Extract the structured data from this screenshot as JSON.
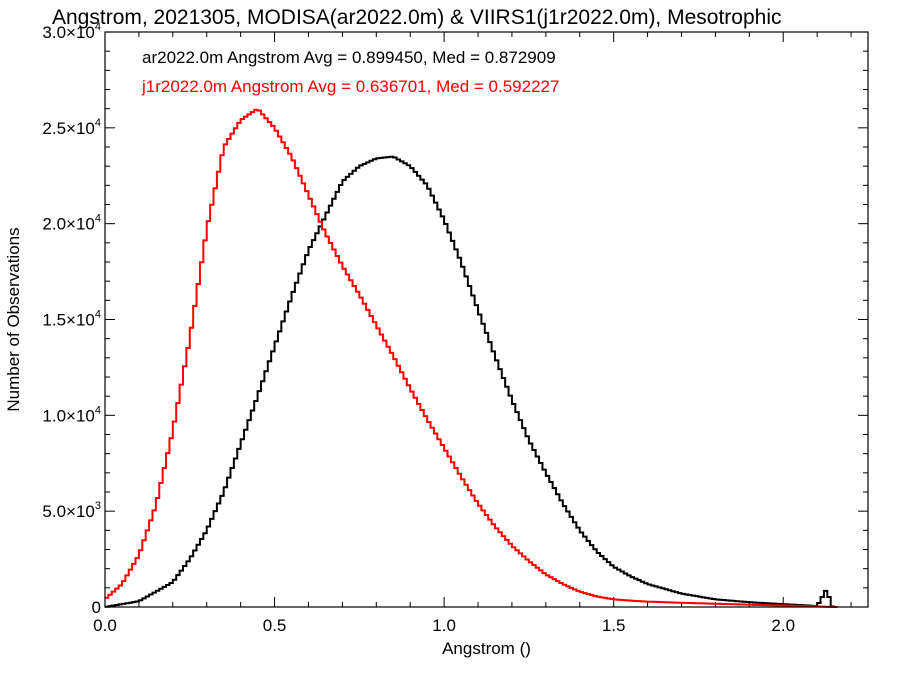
{
  "chart_data": {
    "type": "line",
    "title": "Angstrom, 2021305, MODISA(ar2022.0m) & VIIRS1(j1r2022.0m), Mesotrophic",
    "xlabel": "Angstrom ()",
    "ylabel": "Number of Observations",
    "xlim": [
      0.0,
      2.25
    ],
    "ylim": [
      0,
      30000
    ],
    "xticks": [
      "0.0",
      "0.5",
      "1.0",
      "1.5",
      "2.0"
    ],
    "yticks": [
      {
        "value": 0,
        "mantissa": "0",
        "exp": ""
      },
      {
        "value": 5000,
        "mantissa": "5.0",
        "exp": "3"
      },
      {
        "value": 10000,
        "mantissa": "1.0",
        "exp": "4"
      },
      {
        "value": 15000,
        "mantissa": "1.5",
        "exp": "4"
      },
      {
        "value": 20000,
        "mantissa": "2.0",
        "exp": "4"
      },
      {
        "value": 25000,
        "mantissa": "2.5",
        "exp": "4"
      },
      {
        "value": 30000,
        "mantissa": "3.0",
        "exp": "4"
      }
    ],
    "legend_placement": "top-left",
    "series": [
      {
        "name": "ar2022.0m",
        "color": "#000000",
        "legend_text": "ar2022.0m Angstrom Avg = 0.899450, Med = 0.872909",
        "x": [
          0.0,
          0.1,
          0.2,
          0.25,
          0.3,
          0.35,
          0.4,
          0.45,
          0.5,
          0.55,
          0.6,
          0.65,
          0.7,
          0.75,
          0.8,
          0.85,
          0.9,
          0.95,
          1.0,
          1.05,
          1.1,
          1.15,
          1.2,
          1.25,
          1.3,
          1.35,
          1.4,
          1.45,
          1.5,
          1.55,
          1.6,
          1.7,
          1.8,
          1.9,
          2.0,
          2.1,
          2.13,
          2.14,
          2.15
        ],
        "y": [
          0,
          300,
          1300,
          2500,
          4000,
          6000,
          8500,
          11000,
          13600,
          16200,
          18600,
          20400,
          22200,
          23000,
          23400,
          23500,
          23000,
          22000,
          20200,
          18000,
          15500,
          13100,
          10800,
          8700,
          7000,
          5400,
          4000,
          2900,
          2100,
          1600,
          1200,
          700,
          400,
          250,
          150,
          50,
          1000,
          50,
          0
        ]
      },
      {
        "name": "j1r2022.0m",
        "color": "#ff0000",
        "legend_text": "j1r2022.0m Angstrom Avg = 0.636701, Med = 0.592227",
        "x": [
          0.0,
          0.05,
          0.1,
          0.15,
          0.2,
          0.25,
          0.3,
          0.35,
          0.4,
          0.45,
          0.5,
          0.55,
          0.6,
          0.65,
          0.7,
          0.75,
          0.8,
          0.85,
          0.9,
          0.95,
          1.0,
          1.05,
          1.1,
          1.15,
          1.2,
          1.25,
          1.3,
          1.35,
          1.4,
          1.45,
          1.5,
          1.55,
          1.6,
          1.7,
          1.8,
          1.9,
          2.0,
          2.1,
          2.15
        ],
        "y": [
          400,
          1200,
          2700,
          5300,
          9200,
          14000,
          19700,
          24000,
          25400,
          26000,
          25000,
          23500,
          21500,
          19500,
          17800,
          16300,
          14700,
          13100,
          11400,
          9800,
          8300,
          6800,
          5400,
          4200,
          3200,
          2400,
          1700,
          1200,
          800,
          550,
          400,
          330,
          280,
          220,
          170,
          120,
          80,
          30,
          0
        ]
      }
    ]
  }
}
